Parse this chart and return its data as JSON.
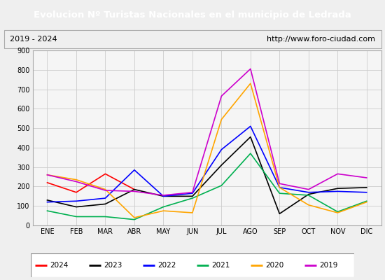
{
  "title": "Evolucion Nº Turistas Nacionales en el municipio de Ledrada",
  "subtitle_left": "2019 - 2024",
  "subtitle_right": "http://www.foro-ciudad.com",
  "title_bg_color": "#4472c4",
  "title_text_color": "#ffffff",
  "months": [
    "ENE",
    "FEB",
    "MAR",
    "ABR",
    "MAY",
    "JUN",
    "JUL",
    "AGO",
    "SEP",
    "OCT",
    "NOV",
    "DIC"
  ],
  "ylim": [
    0,
    900
  ],
  "yticks": [
    0,
    100,
    200,
    300,
    400,
    500,
    600,
    700,
    800,
    900
  ],
  "series": {
    "2024": {
      "color": "#ff0000",
      "values": [
        220,
        170,
        265,
        185,
        null,
        null,
        null,
        null,
        null,
        null,
        null,
        null
      ]
    },
    "2023": {
      "color": "#000000",
      "values": [
        130,
        95,
        110,
        185,
        150,
        150,
        310,
        455,
        60,
        160,
        190,
        195
      ]
    },
    "2022": {
      "color": "#0000ff",
      "values": [
        120,
        125,
        140,
        285,
        150,
        165,
        390,
        510,
        195,
        170,
        175,
        170
      ]
    },
    "2021": {
      "color": "#00b050",
      "values": [
        75,
        45,
        45,
        30,
        95,
        140,
        205,
        370,
        165,
        155,
        70,
        125
      ]
    },
    "2020": {
      "color": "#ffa500",
      "values": [
        260,
        235,
        185,
        40,
        75,
        65,
        545,
        730,
        195,
        105,
        65,
        120
      ]
    },
    "2019": {
      "color": "#cc00cc",
      "values": [
        260,
        225,
        180,
        175,
        155,
        170,
        665,
        805,
        215,
        185,
        265,
        245
      ]
    }
  },
  "legend_order": [
    "2024",
    "2023",
    "2022",
    "2021",
    "2020",
    "2019"
  ],
  "bg_color": "#efefef",
  "plot_bg_color": "#f5f5f5",
  "grid_color": "#cccccc",
  "border_color": "#aaaaaa"
}
